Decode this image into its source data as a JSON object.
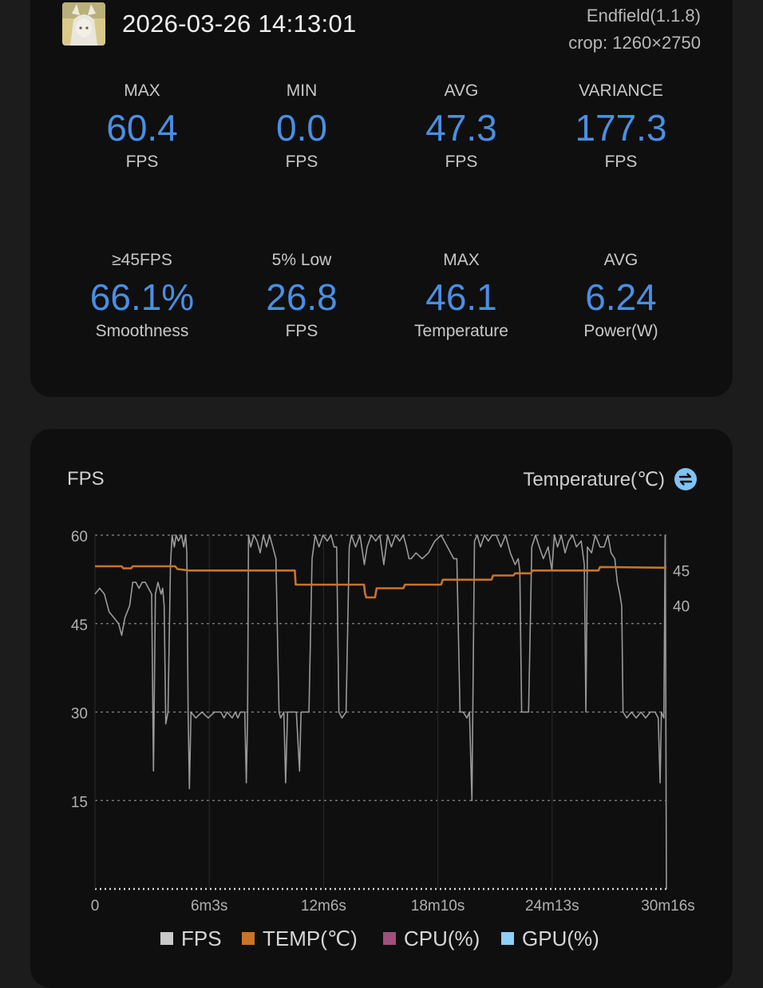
{
  "header": {
    "datetime": "2026-03-26 14:13:01",
    "app": "Endfield(1.1.8)",
    "crop": "crop: 1260×2750"
  },
  "stats_row1": [
    {
      "label": "MAX",
      "value": "60.4",
      "unit": "FPS"
    },
    {
      "label": "MIN",
      "value": "0.0",
      "unit": "FPS"
    },
    {
      "label": "AVG",
      "value": "47.3",
      "unit": "FPS"
    },
    {
      "label": "VARIANCE",
      "value": "177.3",
      "unit": "FPS"
    }
  ],
  "stats_row2": [
    {
      "label": "≥45FPS",
      "value": "66.1%",
      "unit": "Smoothness"
    },
    {
      "label": "5% Low",
      "value": "26.8",
      "unit": "FPS"
    },
    {
      "label": "MAX",
      "value": "46.1",
      "unit": "Temperature"
    },
    {
      "label": "AVG",
      "value": "6.24",
      "unit": "Power(W)"
    }
  ],
  "chart": {
    "left_title": "FPS",
    "right_title": "Temperature(℃)",
    "swap_icon": "swap-icon"
  },
  "chart_data": {
    "type": "line",
    "x_ticks": [
      "0",
      "6m3s",
      "12m6s",
      "18m10s",
      "24m13s",
      "30m16s"
    ],
    "x_range_seconds": [
      0,
      1816
    ],
    "y_left_ticks": [
      "60",
      "45",
      "30",
      "15"
    ],
    "y_left_range": [
      0,
      60
    ],
    "y_right_ticks": [
      "45",
      "40"
    ],
    "y_right_range": [
      0,
      50
    ],
    "grid": true,
    "series": [
      {
        "name": "FPS",
        "color": "#9a9a9a",
        "points": [
          [
            0,
            50
          ],
          [
            15,
            51
          ],
          [
            30,
            50
          ],
          [
            45,
            47
          ],
          [
            60,
            46
          ],
          [
            75,
            45
          ],
          [
            85,
            43
          ],
          [
            95,
            46
          ],
          [
            110,
            48
          ],
          [
            120,
            52
          ],
          [
            130,
            52
          ],
          [
            140,
            51
          ],
          [
            150,
            52
          ],
          [
            160,
            52
          ],
          [
            170,
            51
          ],
          [
            180,
            50
          ],
          [
            186,
            20
          ],
          [
            192,
            50
          ],
          [
            200,
            52
          ],
          [
            210,
            50
          ],
          [
            215,
            51
          ],
          [
            220,
            48
          ],
          [
            225,
            28
          ],
          [
            232,
            30
          ],
          [
            240,
            55
          ],
          [
            245,
            60
          ],
          [
            252,
            58
          ],
          [
            258,
            60
          ],
          [
            265,
            59
          ],
          [
            275,
            60
          ],
          [
            282,
            58
          ],
          [
            288,
            60
          ],
          [
            292,
            57
          ],
          [
            296,
            30
          ],
          [
            300,
            17
          ],
          [
            305,
            30
          ],
          [
            320,
            29
          ],
          [
            340,
            30
          ],
          [
            360,
            29
          ],
          [
            380,
            30
          ],
          [
            400,
            30
          ],
          [
            410,
            29
          ],
          [
            420,
            30
          ],
          [
            436,
            29
          ],
          [
            446,
            30
          ],
          [
            454,
            29
          ],
          [
            462,
            30
          ],
          [
            470,
            30
          ],
          [
            476,
            30
          ],
          [
            481,
            18
          ],
          [
            485,
            29
          ],
          [
            488,
            60
          ],
          [
            495,
            58
          ],
          [
            505,
            60
          ],
          [
            515,
            59
          ],
          [
            525,
            57
          ],
          [
            535,
            60
          ],
          [
            545,
            58
          ],
          [
            555,
            60
          ],
          [
            565,
            58
          ],
          [
            575,
            56
          ],
          [
            585,
            30
          ],
          [
            590,
            29
          ],
          [
            600,
            30
          ],
          [
            606,
            18
          ],
          [
            612,
            30
          ],
          [
            625,
            30
          ],
          [
            640,
            30
          ],
          [
            650,
            20
          ],
          [
            655,
            30
          ],
          [
            660,
            30
          ],
          [
            680,
            30
          ],
          [
            690,
            56
          ],
          [
            700,
            60
          ],
          [
            712,
            58
          ],
          [
            725,
            60
          ],
          [
            738,
            59
          ],
          [
            750,
            60
          ],
          [
            760,
            58
          ],
          [
            768,
            58
          ],
          [
            775,
            30
          ],
          [
            785,
            29
          ],
          [
            798,
            30
          ],
          [
            808,
            58
          ],
          [
            815,
            60
          ],
          [
            828,
            58
          ],
          [
            842,
            60
          ],
          [
            856,
            55
          ],
          [
            865,
            58
          ],
          [
            878,
            60
          ],
          [
            892,
            59
          ],
          [
            905,
            60
          ],
          [
            918,
            55
          ],
          [
            930,
            60
          ],
          [
            942,
            58
          ],
          [
            955,
            60
          ],
          [
            968,
            59
          ],
          [
            980,
            60
          ],
          [
            990,
            58
          ],
          [
            998,
            56
          ],
          [
            1005,
            56
          ],
          [
            1020,
            57
          ],
          [
            1040,
            56
          ],
          [
            1060,
            57
          ],
          [
            1080,
            59
          ],
          [
            1100,
            60
          ],
          [
            1120,
            58
          ],
          [
            1140,
            56
          ],
          [
            1150,
            56
          ],
          [
            1160,
            30
          ],
          [
            1170,
            30
          ],
          [
            1182,
            29
          ],
          [
            1190,
            30
          ],
          [
            1198,
            15
          ],
          [
            1206,
            59
          ],
          [
            1215,
            60
          ],
          [
            1225,
            58
          ],
          [
            1238,
            60
          ],
          [
            1250,
            59
          ],
          [
            1262,
            60
          ],
          [
            1275,
            60
          ],
          [
            1290,
            58
          ],
          [
            1305,
            60
          ],
          [
            1320,
            57
          ],
          [
            1335,
            55
          ],
          [
            1345,
            56
          ],
          [
            1350,
            54
          ],
          [
            1356,
            30
          ],
          [
            1365,
            30
          ],
          [
            1378,
            30
          ],
          [
            1388,
            58
          ],
          [
            1400,
            60
          ],
          [
            1412,
            58
          ],
          [
            1425,
            56
          ],
          [
            1440,
            58
          ],
          [
            1452,
            54
          ],
          [
            1460,
            60
          ],
          [
            1470,
            58
          ],
          [
            1482,
            60
          ],
          [
            1494,
            57
          ],
          [
            1505,
            59
          ],
          [
            1518,
            60
          ],
          [
            1530,
            58
          ],
          [
            1545,
            59
          ],
          [
            1555,
            55
          ],
          [
            1560,
            30
          ],
          [
            1565,
            58
          ],
          [
            1578,
            57
          ],
          [
            1590,
            60
          ],
          [
            1605,
            58
          ],
          [
            1618,
            58
          ],
          [
            1630,
            60
          ],
          [
            1640,
            57
          ],
          [
            1652,
            56
          ],
          [
            1660,
            52
          ],
          [
            1668,
            50
          ],
          [
            1674,
            48
          ],
          [
            1678,
            30
          ],
          [
            1690,
            29
          ],
          [
            1705,
            30
          ],
          [
            1720,
            29
          ],
          [
            1735,
            30
          ],
          [
            1750,
            29
          ],
          [
            1765,
            30
          ],
          [
            1780,
            30
          ],
          [
            1790,
            29
          ],
          [
            1796,
            18
          ],
          [
            1800,
            30
          ],
          [
            1808,
            29
          ],
          [
            1812,
            60
          ],
          [
            1816,
            0
          ]
        ]
      },
      {
        "name": "TEMP(℃)",
        "color": "#c8742a",
        "points": [
          [
            0,
            45.6
          ],
          [
            85,
            45.6
          ],
          [
            90,
            45.3
          ],
          [
            115,
            45.3
          ],
          [
            120,
            45.6
          ],
          [
            255,
            45.6
          ],
          [
            262,
            45.2
          ],
          [
            300,
            45.0
          ],
          [
            450,
            45.0
          ],
          [
            635,
            45.0
          ],
          [
            638,
            43.0
          ],
          [
            855,
            43.0
          ],
          [
            858,
            41.8
          ],
          [
            862,
            41.2
          ],
          [
            890,
            41.2
          ],
          [
            895,
            42.5
          ],
          [
            980,
            42.5
          ],
          [
            985,
            43.0
          ],
          [
            1100,
            43.0
          ],
          [
            1105,
            43.7
          ],
          [
            1260,
            43.7
          ],
          [
            1265,
            44.3
          ],
          [
            1330,
            44.3
          ],
          [
            1335,
            44.6
          ],
          [
            1385,
            44.6
          ],
          [
            1390,
            45.0
          ],
          [
            1600,
            45.0
          ],
          [
            1605,
            45.5
          ],
          [
            1816,
            45.4
          ]
        ]
      }
    ],
    "legend": [
      {
        "name": "FPS",
        "color": "#c9c9c9"
      },
      {
        "name": "TEMP(℃)",
        "color": "#c8742a"
      },
      {
        "name": "CPU(%)",
        "color": "#a0507a"
      },
      {
        "name": "GPU(%)",
        "color": "#8ecff7"
      }
    ]
  }
}
